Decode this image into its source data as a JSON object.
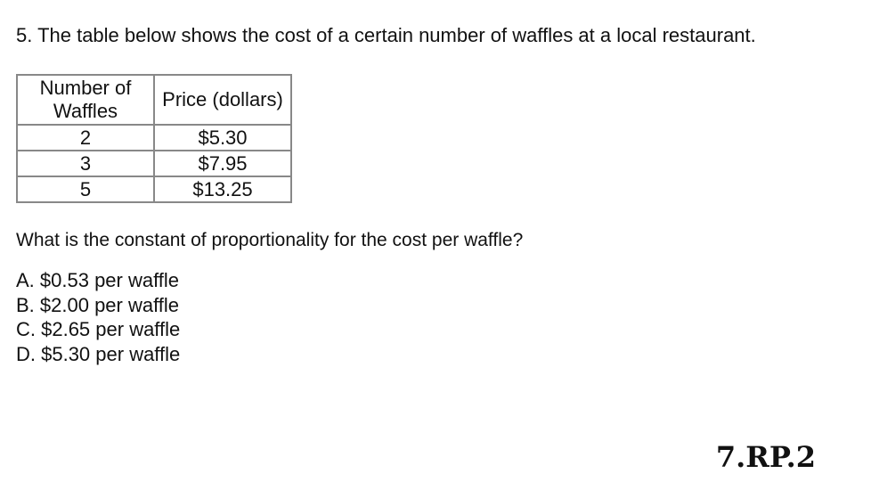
{
  "problem": {
    "title": "5. The table below shows the cost of a certain number of waffles at a local restaurant.",
    "table": {
      "headers": [
        "Number of Waffles",
        "Price (dollars)"
      ],
      "rows": [
        [
          "2",
          "$5.30"
        ],
        [
          "3",
          "$7.95"
        ],
        [
          "5",
          "$13.25"
        ]
      ]
    },
    "question": "What is the constant of proportionality for the cost per waffle?",
    "options": [
      "A. $0.53 per waffle",
      "B. $2.00 per waffle",
      "C. $2.65 per waffle",
      "D. $5.30 per waffle"
    ]
  },
  "standard": "7.RP.2"
}
